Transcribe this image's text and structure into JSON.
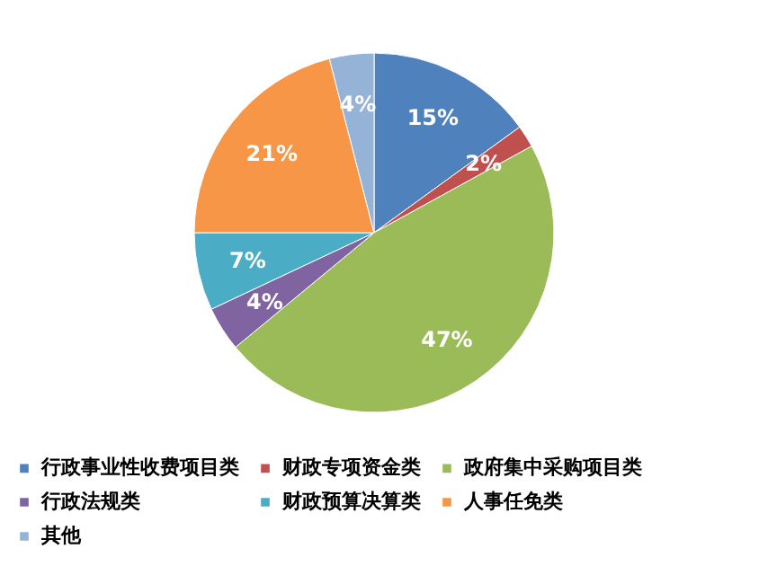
{
  "chart_data": {
    "type": "pie",
    "categories": [
      "行政事业性收费项目类",
      "财政专项资金类",
      "政府集中采购项目类",
      "行政法规类",
      "财政预算决算类",
      "人事任免类",
      "其他"
    ],
    "values": [
      15,
      2,
      47,
      4,
      7,
      21,
      4
    ],
    "value_labels": [
      "15%",
      "2%",
      "47%",
      "4%",
      "7%",
      "21%",
      "4%"
    ],
    "colors": [
      "#4f81bd",
      "#c0504d",
      "#9bbb59",
      "#8064a2",
      "#4bacc6",
      "#f79646",
      "#95b3d7"
    ],
    "legend": "bottom"
  }
}
